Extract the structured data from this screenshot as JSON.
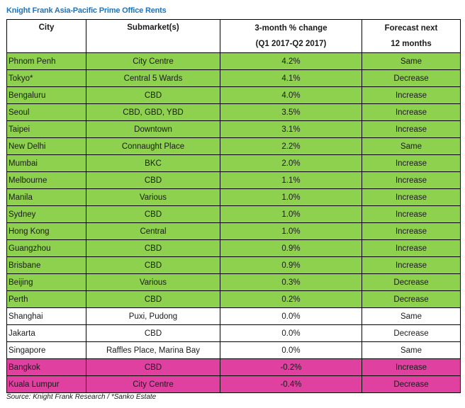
{
  "title": "Knight Frank Asia-Pacific Prime Office Rents",
  "headers": {
    "city": "City",
    "submarket": "Submarket(s)",
    "change_line1": "3-month % change",
    "change_line2": "(Q1 2017-Q2 2017)",
    "forecast_line1": "Forecast next",
    "forecast_line2": "12 months"
  },
  "colors": {
    "green": "#8dd14e",
    "white": "#ffffff",
    "pink": "#e040a0",
    "title": "#1f73b7"
  },
  "rows": [
    {
      "city": "Phnom Penh",
      "submarket": "City Centre",
      "change": "4.2%",
      "forecast": "Same",
      "color": "green"
    },
    {
      "city": "Tokyo*",
      "submarket": "Central 5 Wards",
      "change": "4.1%",
      "forecast": "Decrease",
      "color": "green"
    },
    {
      "city": "Bengaluru",
      "submarket": "CBD",
      "change": "4.0%",
      "forecast": "Increase",
      "color": "green"
    },
    {
      "city": "Seoul",
      "submarket": "CBD, GBD, YBD",
      "change": "3.5%",
      "forecast": "Increase",
      "color": "green"
    },
    {
      "city": "Taipei",
      "submarket": "Downtown",
      "change": "3.1%",
      "forecast": "Increase",
      "color": "green"
    },
    {
      "city": "New Delhi",
      "submarket": "Connaught Place",
      "change": "2.2%",
      "forecast": "Same",
      "color": "green"
    },
    {
      "city": "Mumbai",
      "submarket": "BKC",
      "change": "2.0%",
      "forecast": "Increase",
      "color": "green"
    },
    {
      "city": "Melbourne",
      "submarket": "CBD",
      "change": "1.1%",
      "forecast": "Increase",
      "color": "green"
    },
    {
      "city": "Manila",
      "submarket": "Various",
      "change": "1.0%",
      "forecast": "Increase",
      "color": "green"
    },
    {
      "city": "Sydney",
      "submarket": "CBD",
      "change": "1.0%",
      "forecast": "Increase",
      "color": "green"
    },
    {
      "city": "Hong Kong",
      "submarket": "Central",
      "change": "1.0%",
      "forecast": "Increase",
      "color": "green"
    },
    {
      "city": "Guangzhou",
      "submarket": "CBD",
      "change": "0.9%",
      "forecast": "Increase",
      "color": "green"
    },
    {
      "city": "Brisbane",
      "submarket": "CBD",
      "change": "0.9%",
      "forecast": "Increase",
      "color": "green"
    },
    {
      "city": "Beijing",
      "submarket": "Various",
      "change": "0.3%",
      "forecast": "Decrease",
      "color": "green"
    },
    {
      "city": "Perth",
      "submarket": "CBD",
      "change": "0.2%",
      "forecast": "Decrease",
      "color": "green"
    },
    {
      "city": "Shanghai",
      "submarket": "Puxi, Pudong",
      "change": "0.0%",
      "forecast": "Same",
      "color": "white"
    },
    {
      "city": "Jakarta",
      "submarket": "CBD",
      "change": "0.0%",
      "forecast": "Decrease",
      "color": "white"
    },
    {
      "city": "Singapore",
      "submarket": "Raffles Place, Marina Bay",
      "change": "0.0%",
      "forecast": "Same",
      "color": "white"
    },
    {
      "city": "Bangkok",
      "submarket": "CBD",
      "change": "-0.2%",
      "forecast": "Increase",
      "color": "pink"
    },
    {
      "city": "Kuala Lumpur",
      "submarket": "City Centre",
      "change": "-0.4%",
      "forecast": "Decrease",
      "color": "pink"
    }
  ],
  "source": "Source: Knight Frank Research / *Sanko Estate"
}
